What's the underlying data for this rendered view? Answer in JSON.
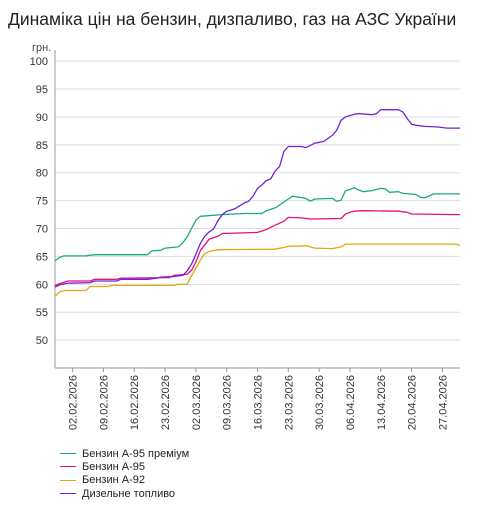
{
  "chart_data": {
    "type": "line",
    "title": "Динаміка цін на бензин, дизпаливо, газ на АЗС України",
    "ylabel": "грн.",
    "xlabel": "",
    "ylim": [
      45,
      102
    ],
    "yticks": [
      50,
      55,
      60,
      65,
      70,
      75,
      80,
      85,
      90,
      95,
      100
    ],
    "xlim": [
      "2026-01-29",
      "2026-05-01"
    ],
    "xtick_labels": [
      "02.02.2026",
      "09.02.2026",
      "16.02.2026",
      "23.02.2026",
      "02.03.2026",
      "09.03.2026",
      "16.03.2026",
      "23.03.2026",
      "30.03.2026",
      "06.04.2026",
      "13.04.2026",
      "20.04.2026",
      "27.04.2026"
    ],
    "grid": "horizontal",
    "legend_position": "bottom-left",
    "series": [
      {
        "name": "Бензин А-95 преміум",
        "color": "#1aa885",
        "points": [
          [
            "2026-01-29",
            64.2
          ],
          [
            "2026-01-30",
            64.8
          ],
          [
            "2026-01-31",
            65.1
          ],
          [
            "2026-02-05",
            65.1
          ],
          [
            "2026-02-07",
            65.3
          ],
          [
            "2026-02-19",
            65.3
          ],
          [
            "2026-02-20",
            66.0
          ],
          [
            "2026-02-22",
            66.1
          ],
          [
            "2026-02-23",
            66.5
          ],
          [
            "2026-02-26",
            66.7
          ],
          [
            "2026-02-27",
            67.4
          ],
          [
            "2026-02-28",
            68.5
          ],
          [
            "2026-03-01",
            70.0
          ],
          [
            "2026-03-02",
            71.5
          ],
          [
            "2026-03-03",
            72.2
          ],
          [
            "2026-03-08",
            72.5
          ],
          [
            "2026-03-13",
            72.7
          ],
          [
            "2026-03-17",
            72.7
          ],
          [
            "2026-03-18",
            73.2
          ],
          [
            "2026-03-20",
            73.7
          ],
          [
            "2026-03-21",
            74.2
          ],
          [
            "2026-03-23",
            75.3
          ],
          [
            "2026-03-24",
            75.8
          ],
          [
            "2026-03-27",
            75.4
          ],
          [
            "2026-03-28",
            74.9
          ],
          [
            "2026-03-29",
            75.3
          ],
          [
            "2026-04-02",
            75.4
          ],
          [
            "2026-04-03",
            74.9
          ],
          [
            "2026-04-04",
            75.1
          ],
          [
            "2026-04-05",
            76.8
          ],
          [
            "2026-04-06",
            77.0
          ],
          [
            "2026-04-07",
            77.3
          ],
          [
            "2026-04-08",
            76.9
          ],
          [
            "2026-04-09",
            76.6
          ],
          [
            "2026-04-11",
            76.8
          ],
          [
            "2026-04-13",
            77.2
          ],
          [
            "2026-04-14",
            77.1
          ],
          [
            "2026-04-15",
            76.5
          ],
          [
            "2026-04-17",
            76.6
          ],
          [
            "2026-04-18",
            76.3
          ],
          [
            "2026-04-21",
            76.1
          ],
          [
            "2026-04-22",
            75.6
          ],
          [
            "2026-04-23",
            75.5
          ],
          [
            "2026-04-25",
            76.2
          ],
          [
            "2026-05-01",
            76.2
          ]
        ]
      },
      {
        "name": "Бензин А-95",
        "color": "#e3107a",
        "points": [
          [
            "2026-01-29",
            59.8
          ],
          [
            "2026-01-30",
            60.1
          ],
          [
            "2026-02-01",
            60.6
          ],
          [
            "2026-02-06",
            60.6
          ],
          [
            "2026-02-07",
            60.9
          ],
          [
            "2026-02-12",
            60.9
          ],
          [
            "2026-02-13",
            61.1
          ],
          [
            "2026-02-24",
            61.2
          ],
          [
            "2026-02-25",
            61.6
          ],
          [
            "2026-02-28",
            61.8
          ],
          [
            "2026-03-01",
            62.5
          ],
          [
            "2026-03-02",
            64.0
          ],
          [
            "2026-03-03",
            66.0
          ],
          [
            "2026-03-05",
            68.1
          ],
          [
            "2026-03-07",
            68.6
          ],
          [
            "2026-03-08",
            69.1
          ],
          [
            "2026-03-16",
            69.3
          ],
          [
            "2026-03-18",
            69.8
          ],
          [
            "2026-03-20",
            70.6
          ],
          [
            "2026-03-22",
            71.3
          ],
          [
            "2026-03-23",
            72.0
          ],
          [
            "2026-03-26",
            71.9
          ],
          [
            "2026-03-28",
            71.7
          ],
          [
            "2026-04-04",
            71.8
          ],
          [
            "2026-04-05",
            72.6
          ],
          [
            "2026-04-06",
            72.9
          ],
          [
            "2026-04-07",
            73.1
          ],
          [
            "2026-04-09",
            73.2
          ],
          [
            "2026-04-17",
            73.1
          ],
          [
            "2026-04-19",
            72.9
          ],
          [
            "2026-04-20",
            72.6
          ],
          [
            "2026-05-01",
            72.5
          ]
        ]
      },
      {
        "name": "Бензин А-92",
        "color": "#e0a810",
        "points": [
          [
            "2026-01-29",
            57.8
          ],
          [
            "2026-01-30",
            58.6
          ],
          [
            "2026-01-31",
            58.9
          ],
          [
            "2026-02-05",
            58.9
          ],
          [
            "2026-02-06",
            59.6
          ],
          [
            "2026-02-10",
            59.6
          ],
          [
            "2026-02-11",
            59.8
          ],
          [
            "2026-02-25",
            59.8
          ],
          [
            "2026-02-26",
            60.0
          ],
          [
            "2026-02-28",
            60.0
          ],
          [
            "2026-03-01",
            61.5
          ],
          [
            "2026-03-03",
            64.3
          ],
          [
            "2026-03-04",
            65.5
          ],
          [
            "2026-03-05",
            65.9
          ],
          [
            "2026-03-07",
            66.2
          ],
          [
            "2026-03-20",
            66.3
          ],
          [
            "2026-03-22",
            66.6
          ],
          [
            "2026-03-23",
            66.8
          ],
          [
            "2026-03-27",
            66.9
          ],
          [
            "2026-03-29",
            66.5
          ],
          [
            "2026-04-02",
            66.4
          ],
          [
            "2026-04-04",
            66.7
          ],
          [
            "2026-04-05",
            67.2
          ],
          [
            "2026-04-30",
            67.2
          ],
          [
            "2026-05-01",
            67.0
          ]
        ]
      },
      {
        "name": "Дизельне топливо",
        "color": "#7422d6",
        "points": [
          [
            "2026-01-29",
            59.5
          ],
          [
            "2026-01-30",
            59.9
          ],
          [
            "2026-02-01",
            60.2
          ],
          [
            "2026-02-06",
            60.3
          ],
          [
            "2026-02-07",
            60.6
          ],
          [
            "2026-02-12",
            60.6
          ],
          [
            "2026-02-13",
            60.9
          ],
          [
            "2026-02-19",
            60.9
          ],
          [
            "2026-02-21",
            61.1
          ],
          [
            "2026-02-22",
            61.3
          ],
          [
            "2026-02-25",
            61.4
          ],
          [
            "2026-02-27",
            61.6
          ],
          [
            "2026-02-28",
            62.4
          ],
          [
            "2026-03-01",
            63.6
          ],
          [
            "2026-03-02",
            65.4
          ],
          [
            "2026-03-03",
            67.3
          ],
          [
            "2026-03-04",
            68.6
          ],
          [
            "2026-03-05",
            69.4
          ],
          [
            "2026-03-06",
            69.9
          ],
          [
            "2026-03-07",
            71.4
          ],
          [
            "2026-03-08",
            72.5
          ],
          [
            "2026-03-09",
            73.1
          ],
          [
            "2026-03-10",
            73.3
          ],
          [
            "2026-03-11",
            73.6
          ],
          [
            "2026-03-12",
            74.1
          ],
          [
            "2026-03-13",
            74.6
          ],
          [
            "2026-03-14",
            74.9
          ],
          [
            "2026-03-15",
            75.8
          ],
          [
            "2026-03-16",
            77.2
          ],
          [
            "2026-03-17",
            77.8
          ],
          [
            "2026-03-18",
            78.6
          ],
          [
            "2026-03-19",
            78.9
          ],
          [
            "2026-03-20",
            80.3
          ],
          [
            "2026-03-21",
            81.1
          ],
          [
            "2026-03-22",
            83.8
          ],
          [
            "2026-03-23",
            84.7
          ],
          [
            "2026-03-26",
            84.7
          ],
          [
            "2026-03-27",
            84.5
          ],
          [
            "2026-03-28",
            84.9
          ],
          [
            "2026-03-29",
            85.3
          ],
          [
            "2026-03-31",
            85.6
          ],
          [
            "2026-04-02",
            86.7
          ],
          [
            "2026-04-03",
            87.6
          ],
          [
            "2026-04-04",
            89.4
          ],
          [
            "2026-04-05",
            90.0
          ],
          [
            "2026-04-07",
            90.5
          ],
          [
            "2026-04-08",
            90.6
          ],
          [
            "2026-04-11",
            90.4
          ],
          [
            "2026-04-12",
            90.6
          ],
          [
            "2026-04-13",
            91.3
          ],
          [
            "2026-04-17",
            91.3
          ],
          [
            "2026-04-18",
            90.9
          ],
          [
            "2026-04-19",
            89.7
          ],
          [
            "2026-04-20",
            88.7
          ],
          [
            "2026-04-21",
            88.5
          ],
          [
            "2026-04-23",
            88.3
          ],
          [
            "2026-04-26",
            88.2
          ],
          [
            "2026-04-28",
            88.0
          ],
          [
            "2026-05-01",
            88.0
          ]
        ]
      }
    ]
  }
}
